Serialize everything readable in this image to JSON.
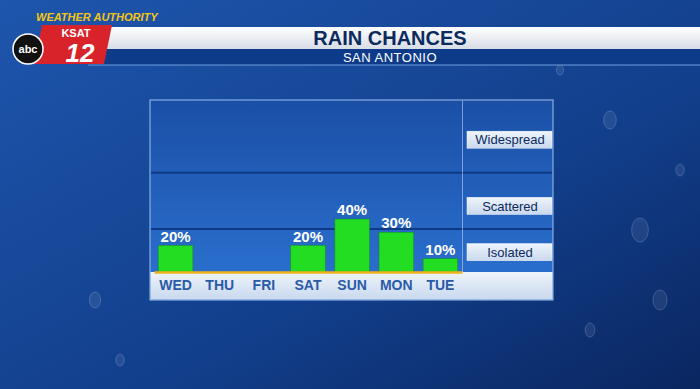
{
  "header": {
    "brand": "WEATHER AUTHORITY",
    "station": "KSAT",
    "channel": "12",
    "network": "abc"
  },
  "chart_data": {
    "type": "bar",
    "title": "RAIN CHANCES",
    "subtitle": "SAN ANTONIO",
    "categories": [
      "WED",
      "THU",
      "FRI",
      "SAT",
      "SUN",
      "MON",
      "TUE"
    ],
    "values": [
      20,
      0,
      0,
      20,
      40,
      30,
      10
    ],
    "value_labels": [
      "20%",
      null,
      null,
      "20%",
      "40%",
      "30%",
      "10%"
    ],
    "data_labels": true,
    "color": "#22dd22",
    "ylim": [
      0,
      130
    ],
    "yticks": [
      {
        "value": 15,
        "label": "Isolated"
      },
      {
        "value": 50,
        "label": "Scattered"
      },
      {
        "value": 100,
        "label": "Widespread"
      }
    ]
  }
}
